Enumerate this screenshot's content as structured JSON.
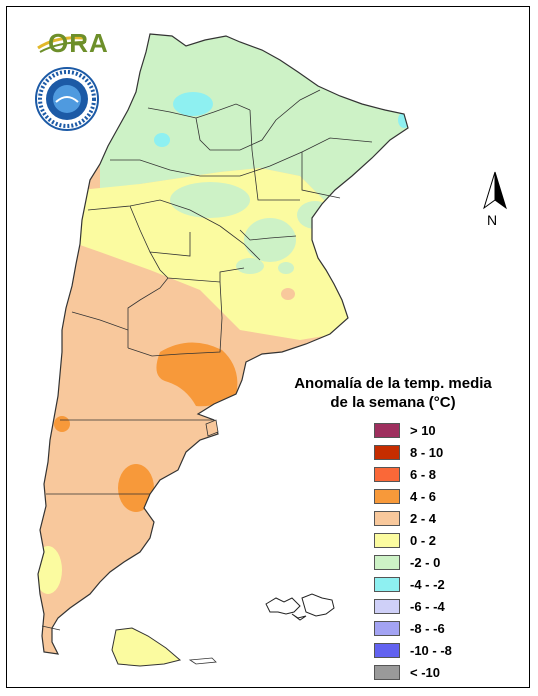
{
  "legend": {
    "title_line1": "Anomalía de la temp. media",
    "title_line2": "de la semana (°C)",
    "items": [
      {
        "label": "> 10",
        "color": "#9e2f5e"
      },
      {
        "label": "8 - 10",
        "color": "#c62d00"
      },
      {
        "label": "6 - 8",
        "color": "#fa6838"
      },
      {
        "label": "4 - 6",
        "color": "#f7993a"
      },
      {
        "label": "2 - 4",
        "color": "#f8c89c"
      },
      {
        "label": "0 - 2",
        "color": "#fbfba0"
      },
      {
        "label": "-2 - 0",
        "color": "#cdf2c6"
      },
      {
        "label": "-4 - -2",
        "color": "#8ef0f1"
      },
      {
        "label": "-6 - -4",
        "color": "#cfd0f8"
      },
      {
        "label": "-8 - -6",
        "color": "#a3a3f3"
      },
      {
        "label": "-10 - -8",
        "color": "#6262f0"
      },
      {
        "label": "< -10",
        "color": "#9a9a9a"
      }
    ]
  },
  "logo": {
    "text": "ORA"
  },
  "north_arrow": {
    "label": "N"
  }
}
